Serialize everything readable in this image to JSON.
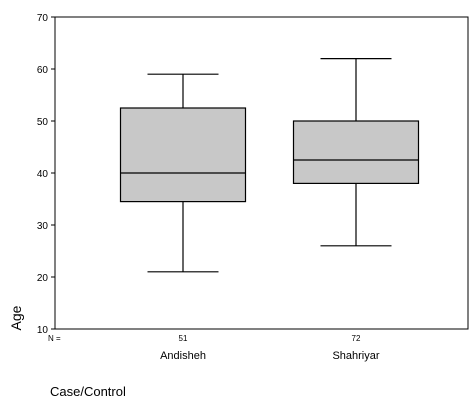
{
  "chart_data": {
    "type": "boxplot",
    "title": "",
    "xlabel": "Case/Control",
    "ylabel": "Age",
    "ylim": [
      10,
      70
    ],
    "yticks": [
      10,
      20,
      30,
      40,
      50,
      60,
      70
    ],
    "n_label": "N =",
    "grid": false,
    "box_fill": "#c8c8c8",
    "line_color": "#000000",
    "groups": [
      {
        "category": "Andisheh",
        "n": "51",
        "whisker_low": 21,
        "q1": 34.5,
        "median": 40,
        "q3": 52.5,
        "whisker_high": 59
      },
      {
        "category": "Shahriyar",
        "n": "72",
        "whisker_low": 26,
        "q1": 38,
        "median": 42.5,
        "q3": 50,
        "whisker_high": 62
      }
    ]
  }
}
